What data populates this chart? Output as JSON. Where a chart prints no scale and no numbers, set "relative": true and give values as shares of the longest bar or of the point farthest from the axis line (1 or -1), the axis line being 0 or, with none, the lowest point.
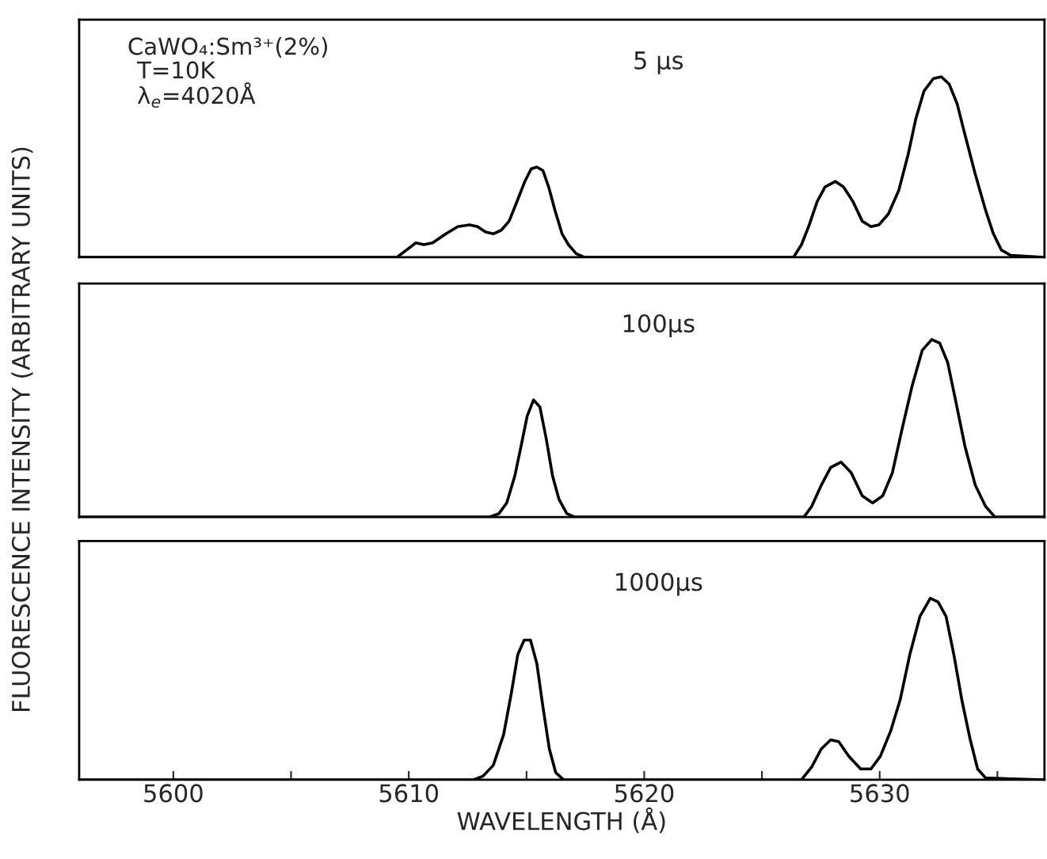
{
  "chart_data": [
    {
      "type": "line",
      "relative": true,
      "tick_labels": false,
      "xlim": [
        5596,
        5637
      ],
      "grid": false,
      "legend": false,
      "annotations": [
        "CaWO₄:Sm³⁺(2%)",
        "T=10K",
        "λ$_{e}$=4020Å",
        "5 μs"
      ],
      "series": [
        {
          "color": "#000000",
          "x": [
            5596,
            5609.5,
            5609.9,
            5610.3,
            5610.64,
            5611.01,
            5611.58,
            5612.08,
            5612.58,
            5612.92,
            5613.26,
            5613.59,
            5613.93,
            5614.26,
            5614.6,
            5614.93,
            5615.2,
            5615.44,
            5615.7,
            5615.94,
            5616.21,
            5616.51,
            5616.78,
            5617.11,
            5617.45,
            5626.34,
            5626.68,
            5627.01,
            5627.35,
            5627.68,
            5628.12,
            5628.46,
            5628.86,
            5629.26,
            5629.63,
            5629.97,
            5630.37,
            5630.81,
            5631.21,
            5631.54,
            5631.88,
            5632.28,
            5632.62,
            5632.95,
            5633.29,
            5633.62,
            5634.06,
            5634.5,
            5634.83,
            5635.17,
            5635.57,
            5637
          ],
          "values": [
            0,
            0,
            0.04,
            0.08,
            0.07,
            0.08,
            0.13,
            0.17,
            0.18,
            0.17,
            0.14,
            0.13,
            0.15,
            0.2,
            0.31,
            0.42,
            0.49,
            0.5,
            0.48,
            0.39,
            0.26,
            0.13,
            0.07,
            0.02,
            0,
            0,
            0.07,
            0.18,
            0.31,
            0.39,
            0.42,
            0.39,
            0.31,
            0.2,
            0.17,
            0.18,
            0.24,
            0.37,
            0.57,
            0.77,
            0.92,
            0.99,
            1.0,
            0.96,
            0.85,
            0.68,
            0.46,
            0.26,
            0.13,
            0.04,
            0.01,
            0
          ]
        }
      ]
    },
    {
      "type": "line",
      "relative": true,
      "tick_labels": false,
      "xlim": [
        5596,
        5637
      ],
      "grid": false,
      "legend": false,
      "ylabel": "FLUORESCENCE INTENSITY (ARBITRARY UNITS)",
      "annotations": [
        "100μs"
      ],
      "series": [
        {
          "color": "#000000",
          "x": [
            5596,
            5613.42,
            5613.83,
            5614.16,
            5614.5,
            5614.77,
            5615.03,
            5615.3,
            5615.57,
            5615.84,
            5616.11,
            5616.38,
            5616.71,
            5617.05,
            5626.78,
            5627.11,
            5627.52,
            5627.92,
            5628.36,
            5628.79,
            5629.26,
            5629.7,
            5630.13,
            5630.54,
            5630.94,
            5631.38,
            5631.81,
            5632.21,
            5632.55,
            5632.89,
            5633.22,
            5633.62,
            5634.06,
            5634.5,
            5634.9,
            5637
          ],
          "values": [
            0,
            0,
            0.02,
            0.08,
            0.23,
            0.4,
            0.57,
            0.66,
            0.62,
            0.44,
            0.23,
            0.1,
            0.02,
            0,
            0,
            0.06,
            0.18,
            0.28,
            0.31,
            0.25,
            0.12,
            0.08,
            0.12,
            0.25,
            0.49,
            0.74,
            0.94,
            1.0,
            0.98,
            0.87,
            0.66,
            0.4,
            0.18,
            0.06,
            0,
            0
          ]
        }
      ]
    },
    {
      "type": "line",
      "relative": true,
      "tick_labels": "x",
      "xlim": [
        5596,
        5637
      ],
      "xticks": [
        5600,
        {
          "value": 5605,
          "label": null
        },
        5610,
        {
          "value": 5615,
          "label": null
        },
        5620,
        {
          "value": 5625,
          "label": null
        },
        5630,
        {
          "value": 5635,
          "label": null
        }
      ],
      "grid": false,
      "legend": false,
      "xlabel": "WAVELENGTH (Å)",
      "annotations": [
        "1000μs"
      ],
      "series": [
        {
          "color": "#000000",
          "x": [
            5596,
            5612.75,
            5613.15,
            5613.59,
            5614.03,
            5614.36,
            5614.63,
            5614.9,
            5615.17,
            5615.44,
            5615.7,
            5615.97,
            5616.24,
            5616.58,
            5626.68,
            5627.11,
            5627.52,
            5627.92,
            5628.26,
            5628.69,
            5629.19,
            5629.63,
            5630.03,
            5630.47,
            5630.87,
            5631.28,
            5631.71,
            5632.15,
            5632.48,
            5632.82,
            5633.15,
            5633.49,
            5633.83,
            5634.16,
            5634.5,
            5637
          ],
          "values": [
            0,
            0,
            0.02,
            0.08,
            0.25,
            0.48,
            0.69,
            0.77,
            0.77,
            0.64,
            0.4,
            0.17,
            0.04,
            0,
            0,
            0.07,
            0.17,
            0.22,
            0.21,
            0.13,
            0.06,
            0.06,
            0.13,
            0.27,
            0.44,
            0.69,
            0.9,
            1.0,
            0.98,
            0.9,
            0.69,
            0.44,
            0.23,
            0.06,
            0.01,
            0
          ]
        }
      ]
    }
  ]
}
